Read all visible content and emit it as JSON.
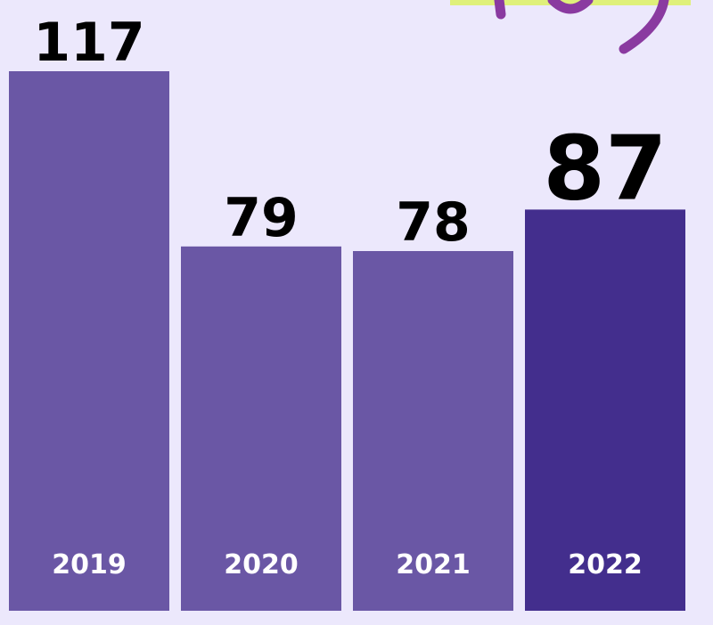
{
  "chart_data": {
    "type": "bar",
    "categories": [
      "2019",
      "2020",
      "2021",
      "2022"
    ],
    "values": [
      117,
      79,
      78,
      87
    ],
    "colors": [
      "#6a57a5",
      "#6a57a5",
      "#6a57a5",
      "#432e8d"
    ],
    "highlight": 3
  }
}
